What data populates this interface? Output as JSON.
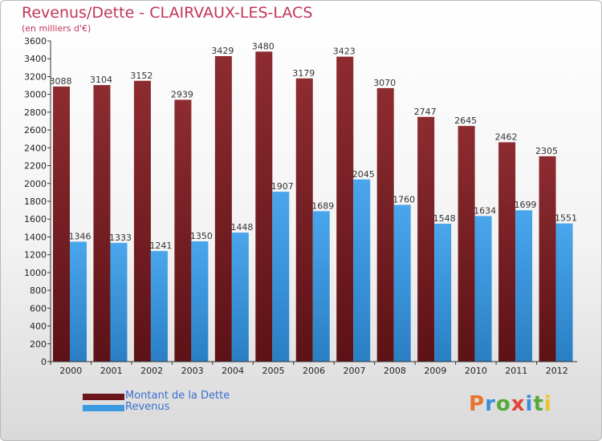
{
  "header": {
    "title": "Revenus/Dette - CLAIRVAUX-LES-LACS",
    "subtitle": "(en milliers d'€)"
  },
  "legend": {
    "debt_label": "Montant de la Dette",
    "revenue_label": "Revenus"
  },
  "logo": {
    "letters": [
      "P",
      "r",
      "o",
      "x",
      "i",
      "t",
      "i"
    ],
    "colors": [
      "#e9742b",
      "#3a8fd8",
      "#58a83a",
      "#e2453a",
      "#3a8fd8",
      "#58a83a",
      "#e9c52b"
    ]
  },
  "colors": {
    "debt": "#7a1f24",
    "debt_light": "#8d2c31",
    "revenue": "#3c9ae2",
    "revenue_dark": "#2a7fc4"
  },
  "chart_data": {
    "type": "bar",
    "title": "Revenus/Dette - CLAIRVAUX-LES-LACS",
    "ylabel": "(en milliers d'€)",
    "xlabel": "",
    "categories": [
      "2000",
      "2001",
      "2002",
      "2003",
      "2004",
      "2005",
      "2006",
      "2007",
      "2008",
      "2009",
      "2010",
      "2011",
      "2012"
    ],
    "series": [
      {
        "name": "Montant de la Dette",
        "values": [
          3088,
          3104,
          3152,
          2939,
          3429,
          3480,
          3179,
          3423,
          3070,
          2747,
          2645,
          2462,
          2305
        ]
      },
      {
        "name": "Revenus",
        "values": [
          1346,
          1333,
          1241,
          1350,
          1448,
          1907,
          1689,
          2045,
          1760,
          1548,
          1634,
          1699,
          1551
        ]
      }
    ],
    "ylim": [
      0,
      3600
    ],
    "ytick_step": 200,
    "grid": false,
    "legend_position": "bottom-left"
  }
}
